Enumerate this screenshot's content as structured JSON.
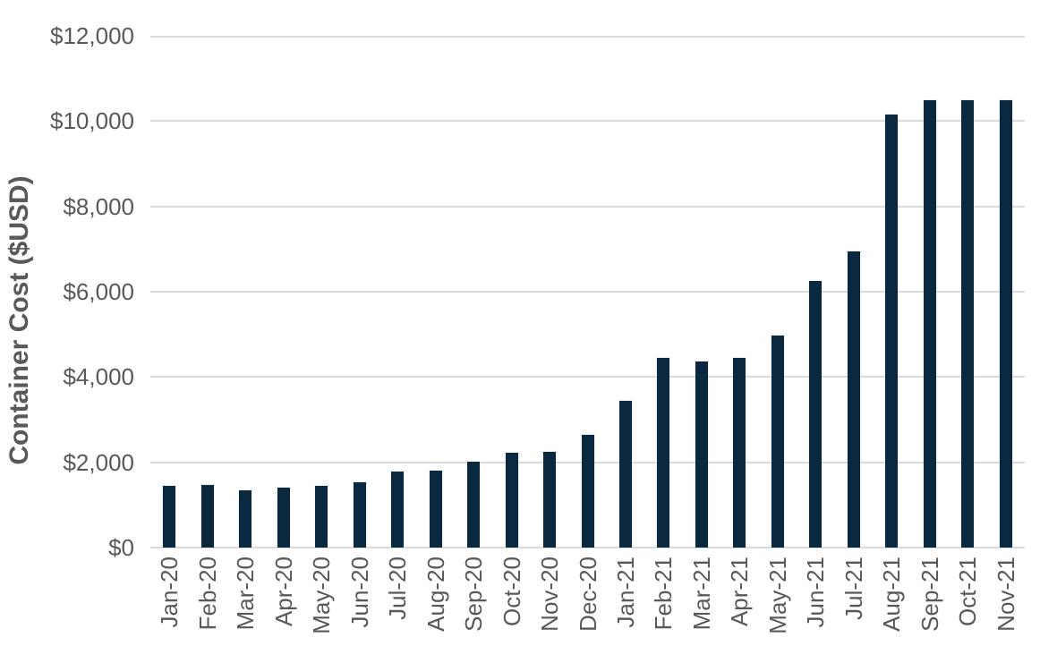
{
  "chart_data": {
    "type": "bar",
    "title": "",
    "xlabel": "",
    "ylabel": "Container Cost ($USD)",
    "categories": [
      "Jan-20",
      "Feb-20",
      "Mar-20",
      "Apr-20",
      "May-20",
      "Jun-20",
      "Jul-20",
      "Aug-20",
      "Sep-20",
      "Oct-20",
      "Nov-20",
      "Dec-20",
      "Jan-21",
      "Feb-21",
      "Mar-21",
      "Apr-21",
      "May-21",
      "Jun-21",
      "Jul-21",
      "Aug-21",
      "Sep-21",
      "Oct-21",
      "Nov-21"
    ],
    "values": [
      1450,
      1470,
      1340,
      1410,
      1450,
      1530,
      1780,
      1800,
      2010,
      2220,
      2250,
      2640,
      3440,
      4450,
      4360,
      4450,
      4970,
      6250,
      6940,
      10150,
      10500,
      10500,
      10500
    ],
    "ylim": [
      0,
      12000
    ],
    "ytick_interval": 2000,
    "yticks": [
      {
        "value": 0,
        "label": "$0"
      },
      {
        "value": 2000,
        "label": "$2,000"
      },
      {
        "value": 4000,
        "label": "$4,000"
      },
      {
        "value": 6000,
        "label": "$6,000"
      },
      {
        "value": 8000,
        "label": "$8,000"
      },
      {
        "value": 10000,
        "label": "$10,000"
      },
      {
        "value": 12000,
        "label": "$12,000"
      }
    ],
    "grid": "horizontal",
    "legend": "none",
    "bar_color": "#0a293e",
    "gridline_color": "#d9d9d9",
    "axis_text_color": "#595959",
    "background_color": "#ffffff"
  }
}
